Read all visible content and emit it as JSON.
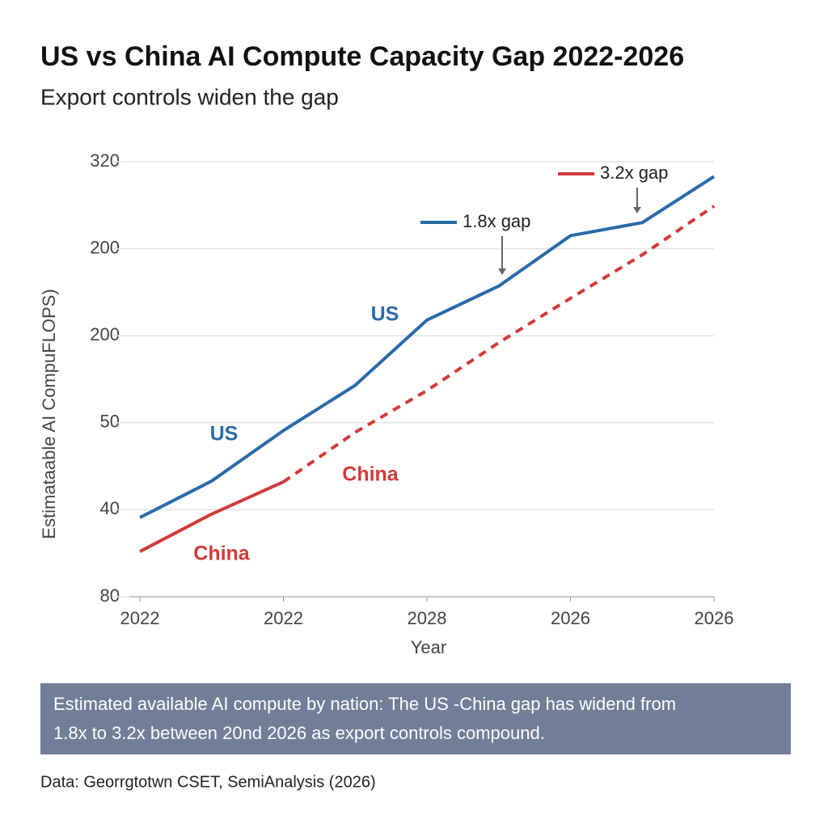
{
  "chart_data": {
    "type": "line",
    "title": "US vs China AI Compute Capacity Gap 2022-2026",
    "subtitle": "Export controls widen the gap",
    "y_label": "Estimataable AI CompuFLOPS)",
    "x_label": "Year",
    "categories": [
      "2022",
      null,
      "2022",
      null,
      "2028",
      null,
      "2026",
      null,
      "2026"
    ],
    "ylim": [
      0,
      5
    ],
    "yticks": [
      {
        "value": 0,
        "label": "80"
      },
      {
        "value": 1,
        "label": "40"
      },
      {
        "value": 2,
        "label": "50"
      },
      {
        "value": 3,
        "label": "200"
      },
      {
        "value": 4,
        "label": "200"
      },
      {
        "value": 5,
        "label": "320"
      }
    ],
    "grid": true,
    "series": [
      {
        "name": "1.8x gap",
        "color": "#2a6aa8",
        "values": [
          0.91,
          1.33,
          1.91,
          2.43,
          3.18,
          3.57,
          4.15,
          4.3,
          4.83
        ]
      },
      {
        "name": "3.2x gap",
        "color": "#d23a3a",
        "dashed_from": 2,
        "values": [
          0.52,
          0.95,
          1.32,
          1.89,
          2.37,
          2.92,
          3.43,
          3.93,
          4.49
        ]
      }
    ],
    "annotations": [
      "US",
      "US",
      "China",
      "China"
    ],
    "caption": [
      "Estimated available AI compute by nation:  The US  -China gap has widend from",
      "1.8x to  3.2x  between 20nd 2026 as export controls compound."
    ],
    "source": "Data: Georrgtotwn CSET, SemiAnalysis (2026)"
  }
}
